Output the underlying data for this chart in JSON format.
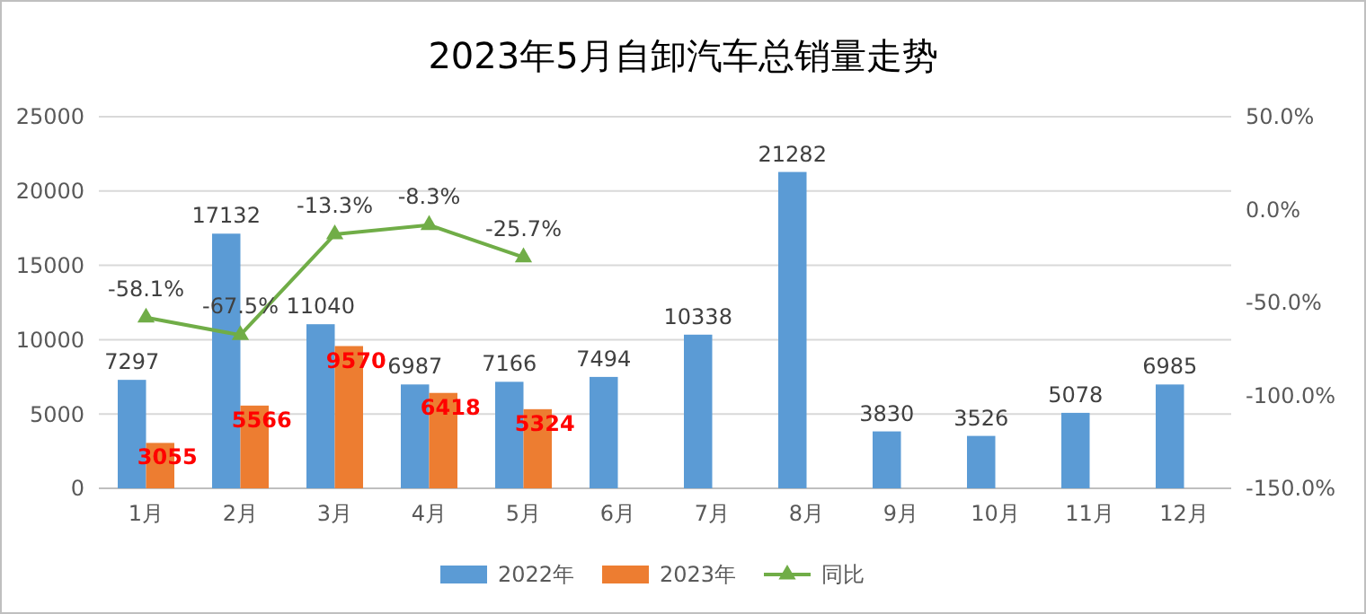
{
  "chart_data": {
    "type": "bar",
    "title": "2023年5月自卸汽车总销量走势",
    "categories": [
      "1月",
      "2月",
      "3月",
      "4月",
      "5月",
      "6月",
      "7月",
      "8月",
      "9月",
      "10月",
      "11月",
      "12月"
    ],
    "series": [
      {
        "name": "2022年",
        "color": "#5b9bd5",
        "values": [
          7297,
          17132,
          11040,
          6987,
          7166,
          7494,
          10338,
          21282,
          3830,
          3526,
          5078,
          6985
        ]
      },
      {
        "name": "2023年",
        "color": "#ed7d31",
        "values": [
          3055,
          5566,
          9570,
          6418,
          5324,
          null,
          null,
          null,
          null,
          null,
          null,
          null
        ]
      },
      {
        "name": "同比",
        "type": "line",
        "axis": "y2",
        "color": "#70ad47",
        "marker": "triangle",
        "value_labels": [
          "-58.1%",
          "-67.5%",
          "-13.3%",
          "-8.3%",
          "-25.7%",
          null,
          null,
          null,
          null,
          null,
          null,
          null
        ],
        "values": [
          -58.1,
          -67.5,
          -13.3,
          -8.3,
          -25.7,
          null,
          null,
          null,
          null,
          null,
          null,
          null
        ]
      }
    ],
    "data_labels": true,
    "ylim": [
      0,
      25000
    ],
    "yticks": [
      0,
      5000,
      10000,
      15000,
      20000,
      25000
    ],
    "y2lim": [
      -150,
      50
    ],
    "y2ticks": [
      {
        "value": -150,
        "label": "-150.0%"
      },
      {
        "value": -100,
        "label": "-100.0%"
      },
      {
        "value": -50,
        "label": "-50.0%"
      },
      {
        "value": 0,
        "label": "0.0%"
      },
      {
        "value": 50,
        "label": "50.0%"
      }
    ],
    "grid": "y",
    "legend": "bottom"
  }
}
